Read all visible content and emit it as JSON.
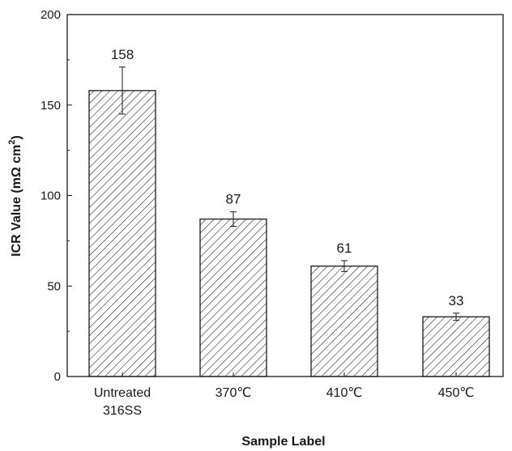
{
  "chart_data": {
    "type": "bar",
    "categories": [
      [
        "Untreated",
        "316SS"
      ],
      [
        "370℃"
      ],
      [
        "410℃"
      ],
      [
        "450℃"
      ]
    ],
    "values": [
      158,
      87,
      61,
      33
    ],
    "error": [
      13,
      4,
      3,
      2
    ],
    "data_labels": [
      "158",
      "87",
      "61",
      "33"
    ],
    "xlabel": "Sample Label",
    "ylabel": {
      "main": "ICR Value (mΩ cm",
      "sup": "2",
      "close": ")"
    },
    "ylim": [
      0,
      200
    ],
    "yticks": [
      0,
      50,
      100,
      150,
      200
    ],
    "grid": false,
    "bar_fill": "hatched",
    "colors": {
      "bar_stroke": "#1a1a1a",
      "axis": "#1a1a1a",
      "background": "#ffffff"
    }
  }
}
